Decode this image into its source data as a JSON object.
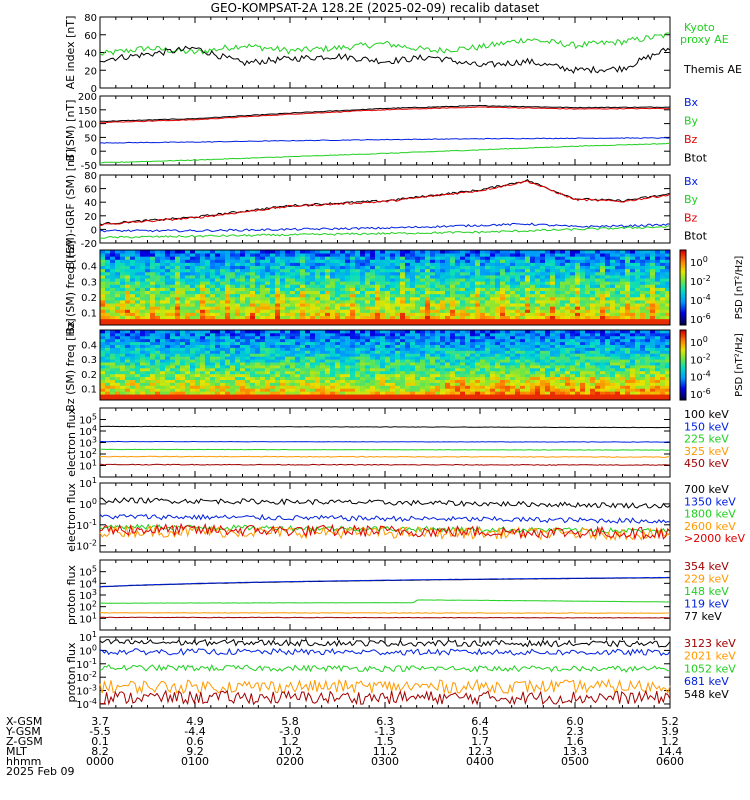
{
  "title": "GEO-KOMPSAT-2A 128.2E (2025-02-09) recalib dataset",
  "colors": {
    "black": "#000000",
    "blue": "#0020e0",
    "green": "#20d020",
    "red": "#e00000",
    "orange": "#ff9900",
    "darkred": "#a00000"
  },
  "chart_data": [
    {
      "type": "line",
      "ylabel": "AE index [nT]",
      "ylim": [
        0,
        80
      ],
      "yticks": [
        "0",
        "20",
        "40",
        "60",
        "80"
      ],
      "legend": [
        {
          "label": "Kyoto proxy AE",
          "color": "green"
        },
        {
          "label": "Themis AE",
          "color": "black"
        }
      ],
      "series": [
        {
          "name": "Kyoto proxy AE",
          "color": "green",
          "x": [
            0,
            0.5,
            1,
            1.5,
            2,
            2.5,
            3,
            3.5,
            4,
            4.5,
            5,
            5.5,
            6
          ],
          "values": [
            38,
            45,
            40,
            48,
            42,
            45,
            50,
            42,
            46,
            55,
            48,
            52,
            60
          ]
        },
        {
          "name": "Themis AE",
          "color": "black",
          "x": [
            0,
            0.5,
            1,
            1.5,
            2,
            2.5,
            3,
            3.5,
            4,
            4.5,
            5,
            5.5,
            6
          ],
          "values": [
            32,
            38,
            45,
            28,
            33,
            36,
            30,
            35,
            25,
            30,
            20,
            22,
            45
          ]
        }
      ]
    },
    {
      "type": "line",
      "ylabel": "B (SM) [nT]",
      "ylim": [
        -50,
        200
      ],
      "yticks": [
        "-50",
        "0",
        "50",
        "100",
        "150",
        "200"
      ],
      "legend": [
        {
          "label": "Bx",
          "color": "blue"
        },
        {
          "label": "By",
          "color": "green"
        },
        {
          "label": "Bz",
          "color": "red"
        },
        {
          "label": "Btot",
          "color": "black"
        }
      ],
      "series": [
        {
          "name": "Btot",
          "color": "black",
          "x": [
            0,
            1,
            2,
            3,
            4,
            5,
            6
          ],
          "values": [
            108,
            118,
            138,
            155,
            165,
            158,
            160
          ]
        },
        {
          "name": "Bz",
          "color": "red",
          "x": [
            0,
            1,
            2,
            3,
            4,
            5,
            6
          ],
          "values": [
            104,
            114,
            134,
            150,
            160,
            153,
            155
          ]
        },
        {
          "name": "Bx",
          "color": "blue",
          "x": [
            0,
            1,
            2,
            3,
            4,
            5,
            6
          ],
          "values": [
            30,
            33,
            38,
            42,
            45,
            47,
            48
          ]
        },
        {
          "name": "By",
          "color": "green",
          "x": [
            0,
            1,
            2,
            3,
            4,
            5,
            6
          ],
          "values": [
            -42,
            -32,
            -20,
            -8,
            5,
            18,
            28
          ]
        }
      ]
    },
    {
      "type": "line",
      "ylabel": "B (SM)-IGRF (SM) [nT]",
      "ylim": [
        -20,
        80
      ],
      "yticks": [
        "-20",
        "0",
        "20",
        "40",
        "60",
        "80"
      ],
      "legend": [
        {
          "label": "Bx",
          "color": "blue"
        },
        {
          "label": "By",
          "color": "green"
        },
        {
          "label": "Bz",
          "color": "red"
        },
        {
          "label": "Btot",
          "color": "black"
        }
      ],
      "series": [
        {
          "name": "Btot",
          "color": "black",
          "x": [
            0,
            1,
            2,
            3,
            4,
            4.5,
            5,
            5.5,
            6
          ],
          "values": [
            8,
            18,
            35,
            42,
            58,
            72,
            45,
            42,
            52
          ]
        },
        {
          "name": "Bz",
          "color": "red",
          "x": [
            0,
            1,
            2,
            3,
            4,
            4.5,
            5,
            5.5,
            6
          ],
          "values": [
            7,
            17,
            34,
            41,
            57,
            71,
            44,
            41,
            51
          ]
        },
        {
          "name": "Bx",
          "color": "blue",
          "x": [
            0,
            1,
            2,
            3,
            4,
            4.5,
            5,
            5.5,
            6
          ],
          "values": [
            -2,
            -2,
            0,
            2,
            6,
            8,
            4,
            5,
            7
          ]
        },
        {
          "name": "By",
          "color": "green",
          "x": [
            0,
            1,
            2,
            3,
            4,
            4.5,
            5,
            5.5,
            6
          ],
          "values": [
            -12,
            -10,
            -8,
            -6,
            -4,
            -2,
            0,
            2,
            4
          ]
        }
      ]
    },
    {
      "type": "heatmap",
      "ylabel": "Bx (SM) freq [Hz]",
      "ylim": [
        0.02,
        0.5
      ],
      "yticks": [
        "0.1",
        "0.2",
        "0.3",
        "0.4"
      ],
      "colorbar_label": "PSD [nT²/Hz]",
      "colorbar_ticks": [
        "10^0",
        "10^-2",
        "10^-4",
        "10^-6"
      ]
    },
    {
      "type": "heatmap",
      "ylabel": "Bz (SM) freq [Hz]",
      "ylim": [
        0.02,
        0.5
      ],
      "yticks": [
        "0.1",
        "0.2",
        "0.3",
        "0.4"
      ],
      "colorbar_label": "PSD [nT²/Hz]",
      "colorbar_ticks": [
        "10^0",
        "10^-2",
        "10^-4",
        "10^-6"
      ]
    },
    {
      "type": "line",
      "ylabel": "electron flux",
      "yscale": "log",
      "ylim": [
        1,
        1000000
      ],
      "yticks": [
        "10^1",
        "10^2",
        "10^3",
        "10^4",
        "10^5"
      ],
      "legend": [
        {
          "label": "100 keV",
          "color": "black"
        },
        {
          "label": "150 keV",
          "color": "blue"
        },
        {
          "label": "225 keV",
          "color": "green"
        },
        {
          "label": "325 keV",
          "color": "orange"
        },
        {
          "label": "450 keV",
          "color": "darkred"
        }
      ],
      "series": [
        {
          "name": "100 keV",
          "color": "black",
          "x": [
            0,
            6
          ],
          "values": [
            25000,
            20000
          ]
        },
        {
          "name": "150 keV",
          "color": "blue",
          "x": [
            0,
            6
          ],
          "values": [
            1200,
            1100
          ]
        },
        {
          "name": "225 keV",
          "color": "green",
          "x": [
            0,
            6
          ],
          "values": [
            250,
            220
          ]
        },
        {
          "name": "325 keV",
          "color": "orange",
          "x": [
            0,
            6
          ],
          "values": [
            60,
            55
          ]
        },
        {
          "name": "450 keV",
          "color": "darkred",
          "x": [
            0,
            6
          ],
          "values": [
            12,
            11
          ]
        }
      ]
    },
    {
      "type": "line",
      "ylabel": "electron flux",
      "yscale": "log",
      "ylim": [
        0.005,
        10
      ],
      "yticks": [
        "10^-2",
        "10^-1",
        "10^0",
        "10^1"
      ],
      "legend": [
        {
          "label": "700 keV",
          "color": "black"
        },
        {
          "label": "1350 keV",
          "color": "blue"
        },
        {
          "label": "1800 keV",
          "color": "green"
        },
        {
          "label": "2600 keV",
          "color": "orange"
        },
        {
          "label": ">2000 keV",
          "color": "red"
        }
      ],
      "series": [
        {
          "name": "700 keV",
          "color": "black",
          "x": [
            0,
            6
          ],
          "values": [
            1.5,
            0.8
          ]
        },
        {
          "name": "1350 keV",
          "color": "blue",
          "x": [
            0,
            6
          ],
          "values": [
            0.25,
            0.15
          ]
        },
        {
          "name": "1800 keV",
          "color": "green",
          "x": [
            0,
            6
          ],
          "values": [
            0.08,
            0.05
          ]
        },
        {
          "name": "2600 keV",
          "color": "orange",
          "x": [
            0,
            6
          ],
          "values": [
            0.05,
            0.035
          ]
        },
        {
          "name": ">2000 keV",
          "color": "red",
          "x": [
            0,
            6
          ],
          "values": [
            0.06,
            0.04
          ]
        }
      ]
    },
    {
      "type": "line",
      "ylabel": "proton flux",
      "yscale": "log",
      "ylim": [
        1,
        1000000
      ],
      "yticks": [
        "10^1",
        "10^2",
        "10^3",
        "10^4",
        "10^5"
      ],
      "legend": [
        {
          "label": "354 keV",
          "color": "darkred"
        },
        {
          "label": "229 keV",
          "color": "orange"
        },
        {
          "label": "148 keV",
          "color": "green"
        },
        {
          "label": "119 keV",
          "color": "blue"
        },
        {
          "label": "77 keV",
          "color": "black"
        }
      ],
      "series": [
        {
          "name": "77 keV",
          "color": "black",
          "x": [
            0,
            6
          ],
          "values": [
            5000,
            30000
          ]
        },
        {
          "name": "119 keV",
          "color": "blue",
          "x": [
            0,
            6
          ],
          "values": [
            5200,
            32000
          ]
        },
        {
          "name": "148 keV",
          "color": "green",
          "x": [
            0,
            3.3,
            3.35,
            6
          ],
          "values": [
            200,
            220,
            380,
            250
          ]
        },
        {
          "name": "229 keV",
          "color": "orange",
          "x": [
            0,
            6
          ],
          "values": [
            30,
            28
          ]
        },
        {
          "name": "354 keV",
          "color": "darkred",
          "x": [
            0,
            6
          ],
          "values": [
            12,
            11
          ]
        }
      ]
    },
    {
      "type": "line",
      "ylabel": "proton flux",
      "yscale": "log",
      "ylim": [
        5e-05,
        10
      ],
      "yticks": [
        "10^-4",
        "10^-3",
        "10^-2",
        "10^-1",
        "10^0",
        "10^1"
      ],
      "legend": [
        {
          "label": "3123 keV",
          "color": "darkred"
        },
        {
          "label": "2021 keV",
          "color": "orange"
        },
        {
          "label": "1052 keV",
          "color": "green"
        },
        {
          "label": "681 keV",
          "color": "blue"
        },
        {
          "label": "548 keV",
          "color": "black"
        }
      ],
      "series": [
        {
          "name": "548 keV",
          "color": "black",
          "x": [
            0,
            6
          ],
          "values": [
            4,
            3
          ]
        },
        {
          "name": "681 keV",
          "color": "blue",
          "x": [
            0,
            6
          ],
          "values": [
            0.8,
            0.7
          ]
        },
        {
          "name": "1052 keV",
          "color": "green",
          "x": [
            0,
            6
          ],
          "values": [
            0.05,
            0.04
          ]
        },
        {
          "name": "2021 keV",
          "color": "orange",
          "x": [
            0,
            6
          ],
          "values": [
            0.002,
            0.002
          ]
        },
        {
          "name": "3123 keV",
          "color": "darkred",
          "x": [
            0,
            6
          ],
          "values": [
            0.0003,
            0.0003
          ]
        }
      ]
    }
  ],
  "axis_table": {
    "row_labels": [
      "X-GSM",
      "Y-GSM",
      "Z-GSM",
      "MLT",
      "hhmm",
      "2025 Feb 09"
    ],
    "columns": [
      [
        "3.7",
        "-5.5",
        "0.1",
        "8.2",
        "0000"
      ],
      [
        "4.9",
        "-4.4",
        "0.6",
        "9.2",
        "0100"
      ],
      [
        "5.8",
        "-3.0",
        "1.2",
        "10.2",
        "0200"
      ],
      [
        "6.3",
        "-1.3",
        "1.5",
        "11.2",
        "0300"
      ],
      [
        "6.4",
        "0.5",
        "1.7",
        "12.3",
        "0400"
      ],
      [
        "6.0",
        "2.3",
        "1.6",
        "13.3",
        "0500"
      ],
      [
        "5.2",
        "3.9",
        "1.2",
        "14.4",
        "0600"
      ]
    ]
  }
}
